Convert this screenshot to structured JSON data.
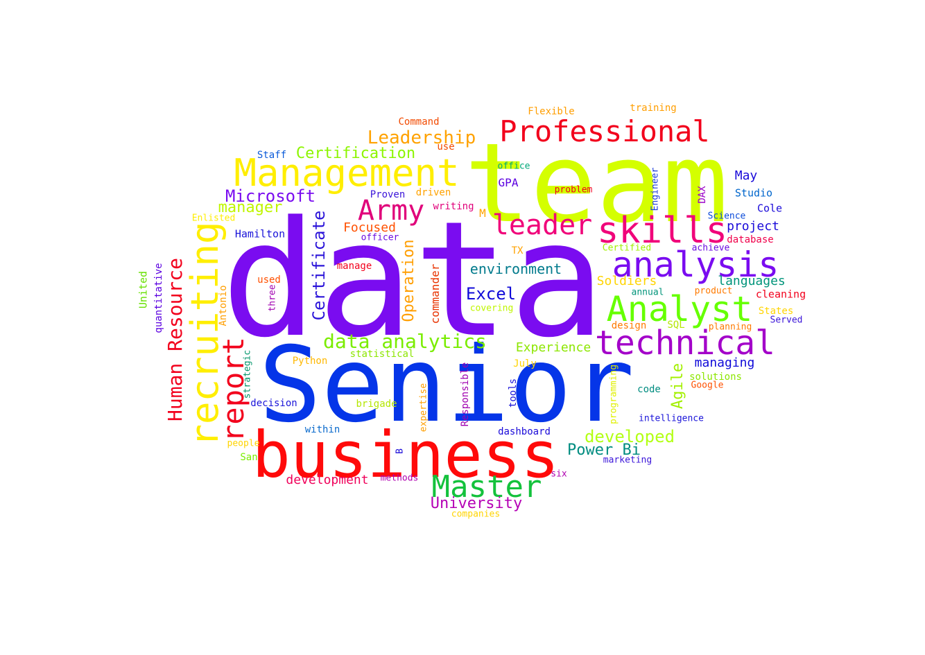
{
  "words": [
    {
      "text": "data",
      "color": "#7a0cf0"
    },
    {
      "text": "Senior",
      "color": "#0535e8"
    },
    {
      "text": "team",
      "color": "#d4ff00"
    },
    {
      "text": "business",
      "color": "#ff0a0a"
    },
    {
      "text": "Management",
      "color": "#ffee00"
    },
    {
      "text": "Professional",
      "color": "#f2001c"
    },
    {
      "text": "skills",
      "color": "#f0047a"
    },
    {
      "text": "analysis",
      "color": "#7a0cf0"
    },
    {
      "text": "Analyst",
      "color": "#66ff00"
    },
    {
      "text": "technical",
      "color": "#a300c9"
    },
    {
      "text": "recruiting",
      "color": "#ffee00"
    },
    {
      "text": "Master",
      "color": "#14c23c"
    },
    {
      "text": "leader",
      "color": "#f0047a"
    },
    {
      "text": "Army",
      "color": "#e0007a"
    },
    {
      "text": "report",
      "color": "#f2001c"
    },
    {
      "text": "Human Resource",
      "color": "#f2001c"
    },
    {
      "text": "data analytics",
      "color": "#7aed00"
    },
    {
      "text": "Leadership",
      "color": "#ffa200"
    },
    {
      "text": "Certification",
      "color": "#8cf500"
    },
    {
      "text": "Certificate",
      "color": "#2b14d9"
    },
    {
      "text": "Operation",
      "color": "#ff9e00"
    },
    {
      "text": "developed",
      "color": "#b3ff14"
    },
    {
      "text": "University",
      "color": "#b500b5"
    },
    {
      "text": "Microsoft",
      "color": "#7a0cf0"
    },
    {
      "text": "Excel",
      "color": "#0f0ad9"
    },
    {
      "text": "Power Bi",
      "color": "#008c80"
    },
    {
      "text": "Agile",
      "color": "#a3f000"
    },
    {
      "text": "manager",
      "color": "#c0f500"
    },
    {
      "text": "environment",
      "color": "#007a8c"
    },
    {
      "text": "Experience",
      "color": "#8ce600"
    },
    {
      "text": "languages",
      "color": "#00947a"
    },
    {
      "text": "managing",
      "color": "#0f0ad9"
    },
    {
      "text": "development",
      "color": "#f0005a"
    },
    {
      "text": "Soldiers",
      "color": "#ffd400"
    },
    {
      "text": "project",
      "color": "#1a0ad9"
    },
    {
      "text": "Focused",
      "color": "#ff5000"
    },
    {
      "text": "commander",
      "color": "#e83200"
    },
    {
      "text": "Command",
      "color": "#f24a00"
    },
    {
      "text": "Flexible",
      "color": "#ff9e00"
    },
    {
      "text": "training",
      "color": "#ff9e00"
    },
    {
      "text": "May",
      "color": "#1a0ad9"
    },
    {
      "text": "Studio",
      "color": "#0066cc"
    },
    {
      "text": "Cole",
      "color": "#1a0ad9"
    },
    {
      "text": "GPA",
      "color": "#5b00e0"
    },
    {
      "text": "office",
      "color": "#00a878"
    },
    {
      "text": "use",
      "color": "#f24a00"
    },
    {
      "text": "driven",
      "color": "#ffa200"
    },
    {
      "text": "writing",
      "color": "#e0007a"
    },
    {
      "text": "problem",
      "color": "#f2001c"
    },
    {
      "text": "Engineer",
      "color": "#1a3ad9"
    },
    {
      "text": "DAX",
      "color": "#9a00c9"
    },
    {
      "text": "Proven",
      "color": "#3a14d9"
    },
    {
      "text": "Staff",
      "color": "#0a5ad9"
    },
    {
      "text": "Hamilton",
      "color": "#1a14d9"
    },
    {
      "text": "Enlisted",
      "color": "#ffee00"
    },
    {
      "text": "officer",
      "color": "#6a0ae0"
    },
    {
      "text": "M",
      "color": "#ffa200"
    },
    {
      "text": "Science",
      "color": "#0a4ad9"
    },
    {
      "text": "database",
      "color": "#f0004a"
    },
    {
      "text": "achieve",
      "color": "#6a0ae0"
    },
    {
      "text": "Certified",
      "color": "#a0f000"
    },
    {
      "text": "TX",
      "color": "#ffa200"
    },
    {
      "text": "manage",
      "color": "#f2001c"
    },
    {
      "text": "used",
      "color": "#ff5000"
    },
    {
      "text": "three",
      "color": "#a000b0"
    },
    {
      "text": "United",
      "color": "#66e000"
    },
    {
      "text": "quantitative",
      "color": "#5b00e0"
    },
    {
      "text": "Antonio",
      "color": "#ff9e00"
    },
    {
      "text": "annual",
      "color": "#00947a"
    },
    {
      "text": "product",
      "color": "#ff7a00"
    },
    {
      "text": "cleaning",
      "color": "#f2001c"
    },
    {
      "text": "covering",
      "color": "#c0f500"
    },
    {
      "text": "States",
      "color": "#ffd400"
    },
    {
      "text": "Served",
      "color": "#3a14d9"
    },
    {
      "text": "design",
      "color": "#ff7a00"
    },
    {
      "text": "SQL",
      "color": "#b3e600"
    },
    {
      "text": "planning",
      "color": "#ff7a00"
    },
    {
      "text": "Python",
      "color": "#ffb800"
    },
    {
      "text": "statistical",
      "color": "#8ce600"
    },
    {
      "text": "strategic",
      "color": "#00946a"
    },
    {
      "text": "July",
      "color": "#ffd400"
    },
    {
      "text": "solutions",
      "color": "#8ce600"
    },
    {
      "text": "programming",
      "color": "#e0f000"
    },
    {
      "text": "code",
      "color": "#008c80"
    },
    {
      "text": "Google",
      "color": "#ff5000"
    },
    {
      "text": "decision",
      "color": "#1a14d9"
    },
    {
      "text": "brigade",
      "color": "#b3e600"
    },
    {
      "text": "expertise",
      "color": "#ff9e00"
    },
    {
      "text": "Responsible",
      "color": "#a000b0"
    },
    {
      "text": "tools",
      "color": "#1a14d9"
    },
    {
      "text": "intelligence",
      "color": "#1a14d9"
    },
    {
      "text": "within",
      "color": "#0a6acc"
    },
    {
      "text": "dashboard",
      "color": "#1a0ad9"
    },
    {
      "text": "people",
      "color": "#ffd400"
    },
    {
      "text": "San",
      "color": "#7aed00"
    },
    {
      "text": "B",
      "color": "#1a0ad9"
    },
    {
      "text": "methods",
      "color": "#b000b0"
    },
    {
      "text": "six",
      "color": "#b000b0"
    },
    {
      "text": "marketing",
      "color": "#3a14d9"
    },
    {
      "text": "companies",
      "color": "#ffd400"
    }
  ]
}
